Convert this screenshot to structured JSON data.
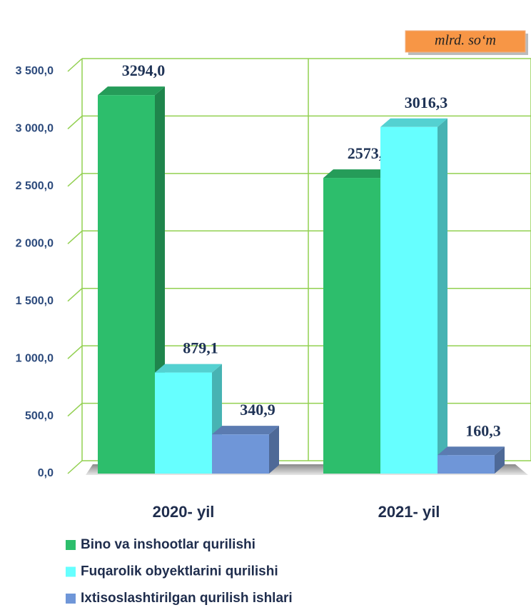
{
  "chart_data": {
    "type": "bar3d",
    "unit": "mlrd. so‘m",
    "categories": [
      "2020- yil",
      "2021- yil"
    ],
    "series": [
      {
        "name": "Bino va inshootlar qurilishi",
        "color": "#2dbe6c",
        "values": [
          3294.0,
          2573.3
        ],
        "value_labels": [
          "3294,0",
          "2573,3"
        ]
      },
      {
        "name": "Fuqarolik obyektlarini qurilishi",
        "color": "#66ffff",
        "values": [
          879.1,
          3016.3
        ],
        "value_labels": [
          "879,1",
          "3016,3"
        ]
      },
      {
        "name": "Ixtisoslashtirilgan qurilish ishlari",
        "color": "#6f96d8",
        "values": [
          340.9,
          160.3
        ],
        "value_labels": [
          "340,9",
          "160,3"
        ]
      }
    ],
    "ylim": [
      0,
      3500
    ],
    "yticks": [
      {
        "value": 0,
        "label": "0,0"
      },
      {
        "value": 500,
        "label": "500,0"
      },
      {
        "value": 1000,
        "label": "1 000,0"
      },
      {
        "value": 1500,
        "label": "1 500,0"
      },
      {
        "value": 2000,
        "label": "2 000,0"
      },
      {
        "value": 2500,
        "label": "2 500,0"
      },
      {
        "value": 3000,
        "label": "3 000,0"
      },
      {
        "value": 3500,
        "label": "3 500,0"
      }
    ],
    "grid": true
  }
}
